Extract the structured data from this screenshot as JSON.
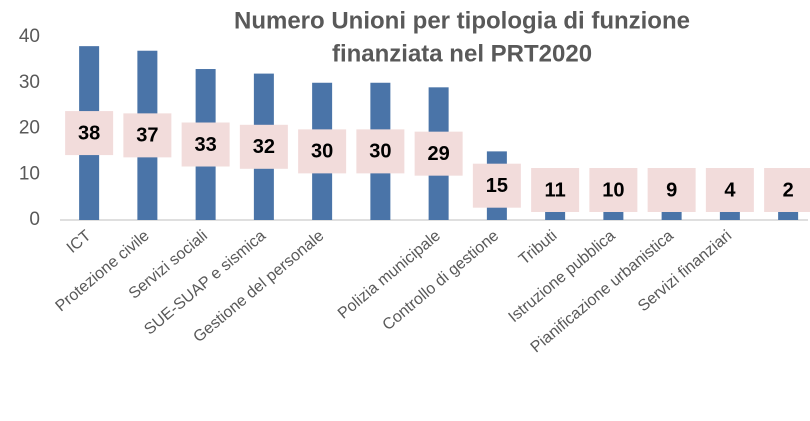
{
  "chart_data": {
    "type": "bar",
    "title": [
      "Numero Unioni per tipologia di funzione",
      "finanziata nel PRT2020"
    ],
    "categories": [
      "ICT",
      "Protezione civile",
      "Servizi sociali",
      "SUE-SUAP e sismica",
      "Gestione del personale",
      null,
      "Polizia municipale",
      "Controllo di gestione",
      "Tributi",
      "Istruzione pubblica",
      "Pianificazione urbanistica",
      "Servizi finanziari",
      null
    ],
    "values": [
      38,
      37,
      33,
      32,
      30,
      30,
      29,
      15,
      11,
      10,
      9,
      4,
      2
    ],
    "color": "#4a74a8",
    "label_background": "#f2dcdb",
    "ylim": [
      0,
      40
    ],
    "yticks": [
      0,
      10,
      20,
      30,
      40
    ],
    "grid": false
  }
}
